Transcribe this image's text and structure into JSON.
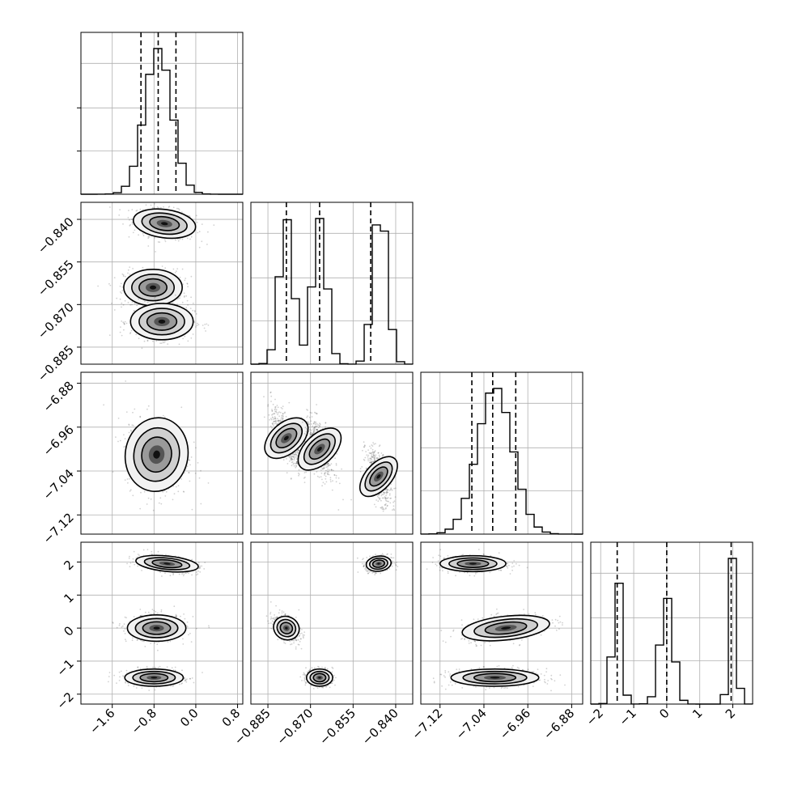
{
  "chart_data": {
    "type": "corner",
    "grid": true,
    "params": [
      {
        "index": 0,
        "range": [
          -2.2,
          0.9
        ],
        "ticks": [
          "-1.6",
          "-0.8",
          "0.0",
          "0.8"
        ],
        "tick_values": [
          -1.6,
          -0.8,
          0.0,
          0.8
        ],
        "quantiles": [
          -1.05,
          -0.72,
          -0.38
        ],
        "modes": [
          {
            "mu": -0.72,
            "sd": 0.26,
            "w": 1
          }
        ]
      },
      {
        "index": 1,
        "range": [
          -0.891,
          -0.834
        ],
        "ticks": [
          "-0.885",
          "-0.870",
          "-0.855",
          "-0.840"
        ],
        "tick_values": [
          -0.885,
          -0.87,
          -0.855,
          -0.84
        ],
        "quantiles": [
          -0.8785,
          -0.8668,
          -0.8488
        ],
        "modes": [
          {
            "mu": -0.8785,
            "sd": 0.0025,
            "w": 1
          },
          {
            "mu": -0.8668,
            "sd": 0.0025,
            "w": 1
          },
          {
            "mu": -0.8455,
            "sd": 0.0025,
            "w": 1.1
          }
        ]
      },
      {
        "index": 2,
        "range": [
          -7.155,
          -6.86
        ],
        "ticks": [
          "-7.12",
          "-7.04",
          "-6.96",
          "-6.88"
        ],
        "tick_values": [
          -7.12,
          -7.04,
          -6.96,
          -6.88
        ],
        "quantiles": [
          -7.062,
          -7.024,
          -6.982
        ],
        "modes": [
          {
            "mu": -7.02,
            "sd": 0.032,
            "w": 1
          }
        ]
      },
      {
        "index": 3,
        "range": [
          -2.3,
          2.6
        ],
        "ticks": [
          "-2",
          "-1",
          "0",
          "1",
          "2"
        ],
        "tick_values": [
          -2,
          -1,
          0,
          1,
          2
        ],
        "quantiles": [
          -1.5,
          0.0,
          1.95
        ],
        "modes": [
          {
            "mu": -1.5,
            "sd": 0.13,
            "w": 1
          },
          {
            "mu": 0.0,
            "sd": 0.2,
            "w": 0.8
          },
          {
            "mu": 2.0,
            "sd": 0.11,
            "w": 1.1
          }
        ]
      }
    ],
    "blobs": [
      {
        "i": 1,
        "j": 0,
        "list": [
          {
            "cx": -0.6,
            "cy": -0.8415,
            "sx": 0.3,
            "sy": 0.0027,
            "rho": -0.3
          },
          {
            "cx": -0.82,
            "cy": -0.864,
            "sx": 0.28,
            "sy": 0.0032,
            "rho": 0.0
          },
          {
            "cx": -0.65,
            "cy": -0.876,
            "sx": 0.3,
            "sy": 0.0032,
            "rho": 0.0
          }
        ]
      },
      {
        "i": 2,
        "j": 0,
        "list": [
          {
            "cx": -0.75,
            "cy": -7.01,
            "sx": 0.3,
            "sy": 0.035,
            "rho": -0.15
          }
        ]
      },
      {
        "i": 2,
        "j": 1,
        "list": [
          {
            "cx": -0.8785,
            "cy": -6.98,
            "sx": 0.0027,
            "sy": 0.028,
            "rho": -0.7
          },
          {
            "cx": -0.8668,
            "cy": -7.0,
            "sx": 0.0026,
            "sy": 0.028,
            "rho": -0.6
          },
          {
            "cx": -0.846,
            "cy": -7.05,
            "sx": 0.0023,
            "sy": 0.025,
            "rho": -0.5
          }
        ]
      },
      {
        "i": 3,
        "j": 0,
        "list": [
          {
            "cx": -0.55,
            "cy": 1.95,
            "sx": 0.3,
            "sy": 0.13,
            "rho": -0.4
          },
          {
            "cx": -0.75,
            "cy": 0.0,
            "sx": 0.28,
            "sy": 0.2,
            "rho": 0.0
          },
          {
            "cx": -0.8,
            "cy": -1.5,
            "sx": 0.28,
            "sy": 0.13,
            "rho": 0.0
          }
        ]
      },
      {
        "i": 3,
        "j": 1,
        "list": [
          {
            "cx": -0.8785,
            "cy": 0.0,
            "sx": 0.0023,
            "sy": 0.2,
            "rho": -0.5
          },
          {
            "cx": -0.8668,
            "cy": -1.5,
            "sx": 0.0023,
            "sy": 0.13,
            "rho": 0.0
          },
          {
            "cx": -0.846,
            "cy": 1.95,
            "sx": 0.0022,
            "sy": 0.12,
            "rho": 0.2
          }
        ]
      },
      {
        "i": 3,
        "j": 2,
        "list": [
          {
            "cx": -7.06,
            "cy": 1.95,
            "sx": 0.03,
            "sy": 0.12,
            "rho": 0.0
          },
          {
            "cx": -7.0,
            "cy": 0.0,
            "sx": 0.04,
            "sy": 0.2,
            "rho": 0.4
          },
          {
            "cx": -7.02,
            "cy": -1.5,
            "sx": 0.04,
            "sy": 0.13,
            "rho": 0.0
          }
        ]
      }
    ]
  }
}
